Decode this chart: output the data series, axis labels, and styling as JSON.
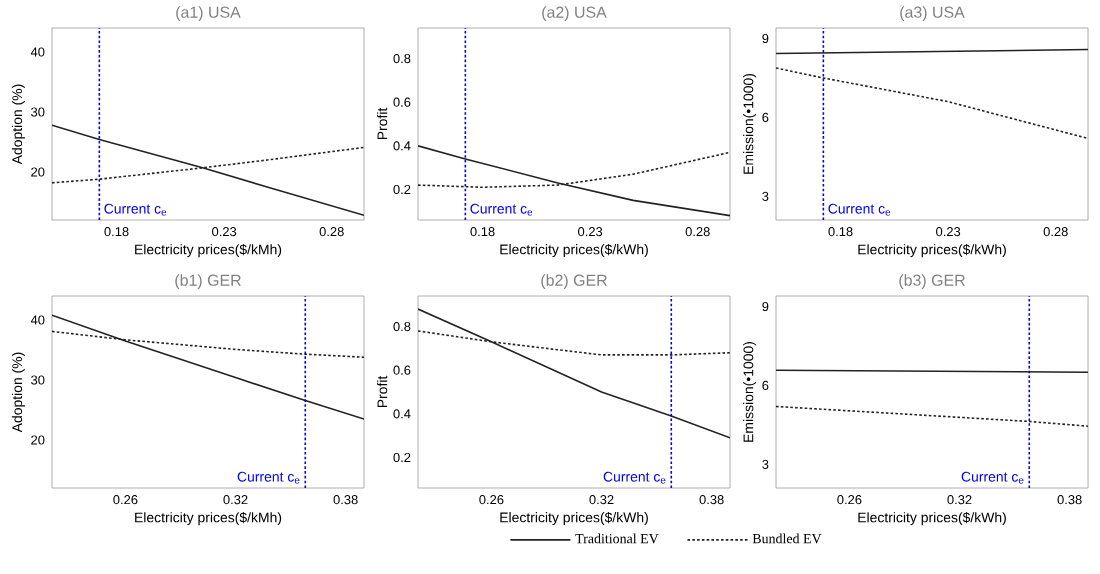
{
  "chart_data": [
    {
      "type": "line",
      "title": "(a1) USA",
      "xlabel": "Electricity prices($/kMh)",
      "ylabel": "Adoption (%)",
      "xlim": [
        0.15,
        0.295
      ],
      "ylim": [
        12,
        44
      ],
      "xticks": [
        0.18,
        0.23,
        0.28
      ],
      "yticks": [
        20,
        30,
        40
      ],
      "series": [
        {
          "color": "#222222",
          "line_style": "solid",
          "x": [
            0.15,
            0.172,
            0.22,
            0.25,
            0.295
          ],
          "values": [
            27.8,
            25.4,
            20.7,
            17.5,
            12.8
          ]
        },
        {
          "color": "#222222",
          "line_style": "dotted",
          "x": [
            0.15,
            0.172,
            0.22,
            0.25,
            0.295
          ],
          "values": [
            18.2,
            18.8,
            20.7,
            22.0,
            24.1
          ]
        }
      ],
      "ref_lines": [
        {
          "axis": "x",
          "value": 0.172,
          "label": "Current c$_{e}$",
          "color": "#0000ff",
          "line_style": "dotted"
        }
      ]
    },
    {
      "type": "line",
      "title": "(a2) USA",
      "xlabel": "Electricity prices($/kWh)",
      "ylabel": "Profit",
      "xlim": [
        0.15,
        0.295
      ],
      "ylim": [
        0.06,
        0.94
      ],
      "xticks": [
        0.18,
        0.23,
        0.28
      ],
      "yticks": [
        0.2,
        0.4,
        0.6,
        0.8
      ],
      "series": [
        {
          "color": "#222222",
          "line_style": "solid",
          "x": [
            0.15,
            0.172,
            0.215,
            0.25,
            0.295
          ],
          "values": [
            0.4,
            0.34,
            0.23,
            0.15,
            0.08
          ]
        },
        {
          "color": "#222222",
          "line_style": "dotted",
          "x": [
            0.15,
            0.18,
            0.215,
            0.25,
            0.295
          ],
          "values": [
            0.22,
            0.21,
            0.22,
            0.27,
            0.37
          ]
        }
      ],
      "ref_lines": [
        {
          "axis": "x",
          "value": 0.172,
          "label": "Current c$_{e}$",
          "color": "#0000ff",
          "line_style": "dotted"
        }
      ]
    },
    {
      "type": "line",
      "title": "(a3) USA",
      "xlabel": "Electricity prices($/kWh)",
      "ylabel": "Emission(•1000)",
      "xlim": [
        0.15,
        0.295
      ],
      "ylim": [
        2.1,
        9.4
      ],
      "xticks": [
        0.18,
        0.23,
        0.28
      ],
      "yticks": [
        3,
        6,
        9
      ],
      "series": [
        {
          "color": "#222222",
          "line_style": "solid",
          "x": [
            0.15,
            0.295
          ],
          "values": [
            8.43,
            8.58
          ]
        },
        {
          "color": "#222222",
          "line_style": "dotted",
          "x": [
            0.15,
            0.172,
            0.23,
            0.295
          ],
          "values": [
            7.88,
            7.5,
            6.6,
            5.2
          ]
        }
      ],
      "ref_lines": [
        {
          "axis": "x",
          "value": 0.172,
          "label": "Current c$_{e}$",
          "color": "#0000ff",
          "line_style": "dotted"
        }
      ]
    },
    {
      "type": "line",
      "title": "(b1) GER",
      "xlabel": "Electricity prices($/kMh)",
      "ylabel": "Adoption (%)",
      "xlim": [
        0.22,
        0.39
      ],
      "ylim": [
        12,
        44
      ],
      "xticks": [
        0.26,
        0.32,
        0.38
      ],
      "yticks": [
        20,
        30,
        40
      ],
      "series": [
        {
          "color": "#222222",
          "line_style": "solid",
          "x": [
            0.22,
            0.26,
            0.32,
            0.358,
            0.39
          ],
          "values": [
            40.8,
            36.5,
            30.4,
            26.6,
            23.5
          ]
        },
        {
          "color": "#222222",
          "line_style": "dotted",
          "x": [
            0.22,
            0.26,
            0.32,
            0.358,
            0.39
          ],
          "values": [
            38.1,
            36.7,
            35.1,
            34.3,
            33.8
          ]
        }
      ],
      "ref_lines": [
        {
          "axis": "x",
          "value": 0.358,
          "label": "Current c$_{e}$",
          "color": "#0000ff",
          "line_style": "dotted"
        }
      ]
    },
    {
      "type": "line",
      "title": "(b2) GER",
      "xlabel": "Electricity prices($/kWh)",
      "ylabel": "Profit",
      "xlim": [
        0.22,
        0.39
      ],
      "ylim": [
        0.06,
        0.94
      ],
      "xticks": [
        0.26,
        0.32,
        0.38
      ],
      "yticks": [
        0.2,
        0.4,
        0.6,
        0.8
      ],
      "legend": "bottom",
      "series": [
        {
          "name": "Traditional EV",
          "color": "#222222",
          "line_style": "solid",
          "x": [
            0.22,
            0.26,
            0.32,
            0.358,
            0.39
          ],
          "values": [
            0.88,
            0.73,
            0.5,
            0.39,
            0.29
          ]
        },
        {
          "name": "Bundled EV",
          "color": "#222222",
          "line_style": "dotted",
          "x": [
            0.22,
            0.26,
            0.3,
            0.32,
            0.358,
            0.39
          ],
          "values": [
            0.78,
            0.73,
            0.69,
            0.67,
            0.67,
            0.68
          ]
        }
      ],
      "ref_lines": [
        {
          "axis": "x",
          "value": 0.358,
          "label": "Current c$_{e}$",
          "color": "#0000ff",
          "line_style": "dotted"
        }
      ]
    },
    {
      "type": "line",
      "title": "(b3) GER",
      "xlabel": "Electricity prices($/kWh)",
      "ylabel": "Emission(•1000)",
      "xlim": [
        0.22,
        0.39
      ],
      "ylim": [
        2.1,
        9.4
      ],
      "xticks": [
        0.26,
        0.32,
        0.38
      ],
      "yticks": [
        3,
        6,
        9
      ],
      "series": [
        {
          "color": "#222222",
          "line_style": "solid",
          "x": [
            0.22,
            0.39
          ],
          "values": [
            6.58,
            6.5
          ]
        },
        {
          "color": "#222222",
          "line_style": "dotted",
          "x": [
            0.22,
            0.358,
            0.39
          ],
          "values": [
            5.2,
            4.63,
            4.45
          ]
        }
      ],
      "ref_lines": [
        {
          "axis": "x",
          "value": 0.358,
          "label": "Current c$_{e}$",
          "color": "#0000ff",
          "line_style": "dotted"
        }
      ]
    }
  ]
}
